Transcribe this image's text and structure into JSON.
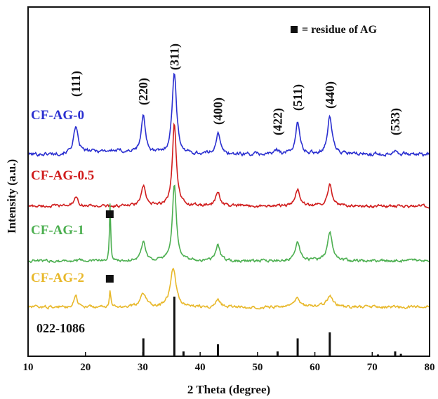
{
  "chart_data": {
    "type": "line",
    "title": "",
    "xlabel": "2 Theta (degree)",
    "ylabel": "Intensity (a.u.)",
    "xlim": [
      10,
      80
    ],
    "x_ticks": [
      10,
      20,
      30,
      40,
      50,
      60,
      70,
      80
    ],
    "grid": false,
    "legend": {
      "position": "top-right",
      "marker": "square",
      "text": "= residue of AG"
    },
    "peak_labels": [
      {
        "label": "(111)",
        "x": 18.3
      },
      {
        "label": "(220)",
        "x": 30.1
      },
      {
        "label": "(311)",
        "x": 35.5
      },
      {
        "label": "(400)",
        "x": 43.1
      },
      {
        "label": "(422)",
        "x": 53.5
      },
      {
        "label": "(511)",
        "x": 57.0
      },
      {
        "label": "(440)",
        "x": 62.6
      },
      {
        "label": "(533)",
        "x": 74.0
      }
    ],
    "series": [
      {
        "name": "CF-AG-0",
        "color": "#2a2fd0",
        "offset": 3.0,
        "peaks": [
          {
            "x": 18.3,
            "h": 0.3,
            "w": 0.5
          },
          {
            "x": 30.1,
            "h": 0.45,
            "w": 0.45
          },
          {
            "x": 35.5,
            "h": 1.0,
            "w": 0.45
          },
          {
            "x": 43.1,
            "h": 0.25,
            "w": 0.45
          },
          {
            "x": 53.5,
            "h": 0.05,
            "w": 0.5
          },
          {
            "x": 57.0,
            "h": 0.38,
            "w": 0.45
          },
          {
            "x": 62.6,
            "h": 0.45,
            "w": 0.5
          },
          {
            "x": 74.0,
            "h": 0.05,
            "w": 0.5
          }
        ],
        "residue_marker_x": null
      },
      {
        "name": "CF-AG-0.5",
        "color": "#d01c1c",
        "offset": 2.0,
        "peaks": [
          {
            "x": 18.3,
            "h": 0.1,
            "w": 0.5
          },
          {
            "x": 30.1,
            "h": 0.25,
            "w": 0.45
          },
          {
            "x": 35.5,
            "h": 1.05,
            "w": 0.42
          },
          {
            "x": 43.1,
            "h": 0.18,
            "w": 0.45
          },
          {
            "x": 57.0,
            "h": 0.22,
            "w": 0.45
          },
          {
            "x": 62.6,
            "h": 0.28,
            "w": 0.5
          }
        ],
        "residue_marker_x": null
      },
      {
        "name": "CF-AG-1",
        "color": "#4caf50",
        "offset": 1.0,
        "peaks": [
          {
            "x": 24.3,
            "h": 0.75,
            "w": 0.12
          },
          {
            "x": 30.1,
            "h": 0.25,
            "w": 0.45
          },
          {
            "x": 35.5,
            "h": 0.95,
            "w": 0.42
          },
          {
            "x": 43.1,
            "h": 0.2,
            "w": 0.45
          },
          {
            "x": 57.0,
            "h": 0.25,
            "w": 0.45
          },
          {
            "x": 62.6,
            "h": 0.38,
            "w": 0.5
          }
        ],
        "residue_marker_x": 24.3
      },
      {
        "name": "CF-AG-2",
        "color": "#e8b82a",
        "offset": 0.0,
        "peaks": [
          {
            "x": 18.3,
            "h": 0.18,
            "w": 0.35
          },
          {
            "x": 24.3,
            "h": 0.22,
            "w": 0.15
          },
          {
            "x": 30.1,
            "h": 0.2,
            "w": 0.6
          },
          {
            "x": 35.3,
            "h": 0.55,
            "w": 0.6
          },
          {
            "x": 43.1,
            "h": 0.1,
            "w": 0.5
          },
          {
            "x": 57.0,
            "h": 0.12,
            "w": 0.6
          },
          {
            "x": 62.6,
            "h": 0.15,
            "w": 0.7
          }
        ],
        "residue_marker_x": 24.3
      }
    ],
    "reference": {
      "name": "022-1086",
      "lines": [
        {
          "x": 30.1,
          "h": 0.3
        },
        {
          "x": 35.5,
          "h": 1.0
        },
        {
          "x": 37.1,
          "h": 0.08
        },
        {
          "x": 43.1,
          "h": 0.2
        },
        {
          "x": 53.5,
          "h": 0.08
        },
        {
          "x": 57.0,
          "h": 0.3
        },
        {
          "x": 62.6,
          "h": 0.4
        },
        {
          "x": 71.0,
          "h": 0.03
        },
        {
          "x": 74.0,
          "h": 0.08
        },
        {
          "x": 75.0,
          "h": 0.04
        }
      ]
    }
  }
}
